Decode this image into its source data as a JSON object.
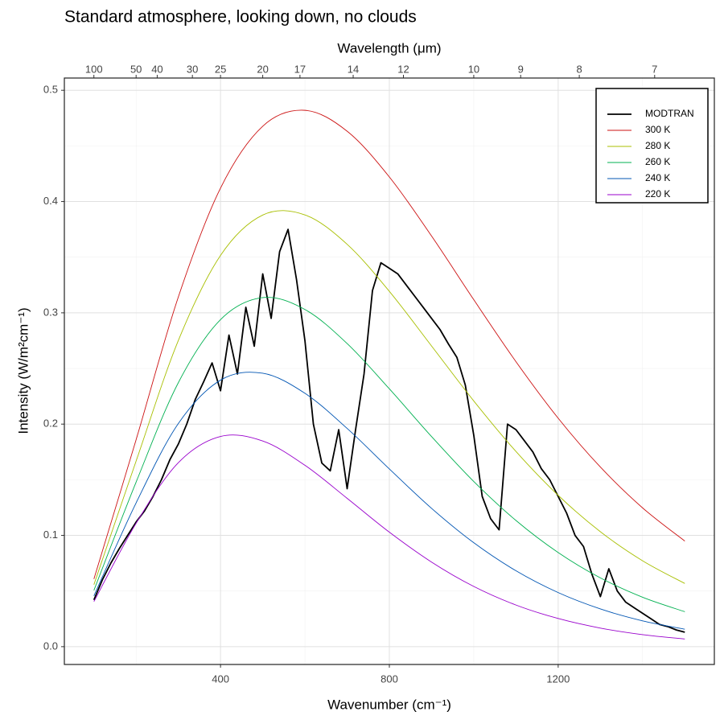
{
  "chart_data": {
    "type": "line",
    "title": "Standard atmosphere, looking down, no clouds",
    "xlabel": "Wavenumber (cm⁻¹)",
    "ylabel": "Intensity (W/m²cm⁻¹)",
    "x2label": "Wavelength (μm)",
    "xlim": [
      30,
      1570
    ],
    "ylim": [
      -0.016,
      0.511
    ],
    "xticks": [
      400,
      800,
      1200
    ],
    "x_minor_ticks": [
      200,
      600,
      1000,
      1400
    ],
    "yticks": [
      {
        "value": 0,
        "label": "0.0"
      },
      0.1,
      0.2,
      0.3,
      0.4,
      0.5
    ],
    "y_minor_ticks": [
      0.05,
      0.15,
      0.25,
      0.35,
      0.45
    ],
    "x2ticks": [
      100,
      50,
      40,
      30,
      25,
      20,
      17,
      14,
      12,
      10,
      9,
      8,
      7
    ],
    "grid": true,
    "legend": "top-right",
    "series": [
      {
        "name": "MODTRAN",
        "color": "#000000",
        "x": [
          100,
          120,
          140,
          160,
          180,
          200,
          220,
          240,
          260,
          280,
          300,
          320,
          340,
          360,
          380,
          400,
          420,
          440,
          460,
          480,
          500,
          520,
          540,
          560,
          580,
          600,
          620,
          640,
          660,
          680,
          700,
          720,
          740,
          760,
          780,
          800,
          820,
          840,
          860,
          880,
          900,
          920,
          940,
          960,
          980,
          1000,
          1020,
          1040,
          1060,
          1080,
          1100,
          1120,
          1140,
          1160,
          1180,
          1200,
          1220,
          1240,
          1260,
          1280,
          1300,
          1320,
          1340,
          1360,
          1380,
          1400,
          1420,
          1440,
          1460,
          1480,
          1500
        ],
        "values": [
          0.042,
          0.06,
          0.075,
          0.088,
          0.1,
          0.112,
          0.122,
          0.135,
          0.15,
          0.168,
          0.182,
          0.2,
          0.222,
          0.238,
          0.255,
          0.23,
          0.28,
          0.245,
          0.305,
          0.27,
          0.335,
          0.295,
          0.355,
          0.375,
          0.33,
          0.275,
          0.2,
          0.165,
          0.158,
          0.195,
          0.142,
          0.195,
          0.245,
          0.32,
          0.345,
          0.34,
          0.335,
          0.325,
          0.315,
          0.305,
          0.295,
          0.285,
          0.272,
          0.26,
          0.235,
          0.19,
          0.135,
          0.115,
          0.105,
          0.2,
          0.195,
          0.185,
          0.175,
          0.16,
          0.15,
          0.135,
          0.12,
          0.1,
          0.09,
          0.065,
          0.045,
          0.07,
          0.05,
          0.04,
          0.035,
          0.03,
          0.025,
          0.02,
          0.018,
          0.015,
          0.013
        ]
      },
      {
        "name": "300 K",
        "color": "#cc1111",
        "x": [
          100,
          200,
          300,
          400,
          500,
          600,
          700,
          800,
          900,
          1000,
          1100,
          1200,
          1300,
          1400,
          1500
        ],
        "values": [
          0.0608,
          0.186,
          0.3142,
          0.4121,
          0.4677,
          0.482,
          0.4632,
          0.4221,
          0.369,
          0.3118,
          0.2561,
          0.2053,
          0.1614,
          0.1247,
          0.0949
        ]
      },
      {
        "name": "280 K",
        "color": "#a8bf00",
        "x": [
          100,
          200,
          300,
          400,
          500,
          600,
          700,
          800,
          900,
          1000,
          1100,
          1200,
          1300,
          1400,
          1500
        ],
        "values": [
          0.0557,
          0.1668,
          0.2751,
          0.3516,
          0.3879,
          0.388,
          0.3616,
          0.3193,
          0.2702,
          0.2208,
          0.1754,
          0.136,
          0.1033,
          0.0772,
          0.0568
        ]
      },
      {
        "name": "260 K",
        "color": "#00b050",
        "x": [
          100,
          200,
          300,
          400,
          500,
          600,
          700,
          800,
          900,
          1000,
          1100,
          1200,
          1300,
          1400,
          1500
        ],
        "values": [
          0.0506,
          0.1479,
          0.2372,
          0.2939,
          0.3137,
          0.303,
          0.2724,
          0.2317,
          0.1888,
          0.1484,
          0.1134,
          0.0846,
          0.0618,
          0.0444,
          0.0314
        ]
      },
      {
        "name": "240 K",
        "color": "#0055b3",
        "x": [
          100,
          200,
          300,
          400,
          500,
          600,
          700,
          800,
          900,
          1000,
          1100,
          1200,
          1300,
          1400,
          1500
        ],
        "values": [
          0.0456,
          0.1292,
          0.2005,
          0.2395,
          0.2457,
          0.2277,
          0.1961,
          0.1597,
          0.1243,
          0.0934,
          0.0682,
          0.0486,
          0.0339,
          0.0232,
          0.0157
        ]
      },
      {
        "name": "220 K",
        "color": "#9900cc",
        "x": [
          100,
          200,
          300,
          400,
          500,
          600,
          700,
          800,
          900,
          1000,
          1100,
          1200,
          1300,
          1400,
          1500
        ],
        "values": [
          0.0405,
          0.1109,
          0.1653,
          0.1889,
          0.1848,
          0.163,
          0.1333,
          0.1029,
          0.076,
          0.0541,
          0.0374,
          0.0253,
          0.0167,
          0.0108,
          0.0069
        ]
      }
    ]
  }
}
